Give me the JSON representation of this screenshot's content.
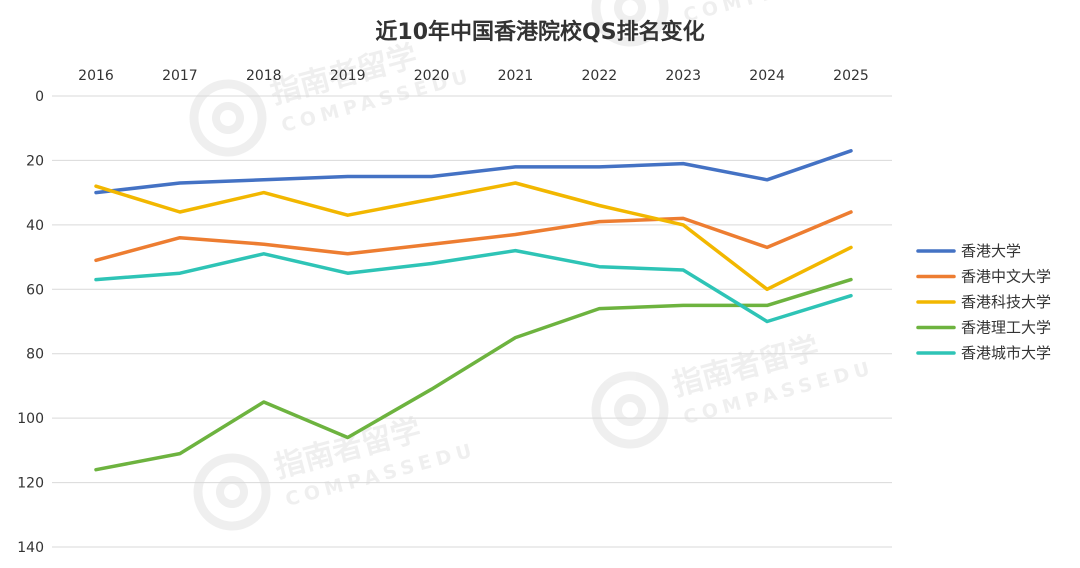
{
  "watermark": {
    "brand_cn": "指南者留学",
    "brand_en": "COMPASSEDU"
  },
  "chart_data": {
    "type": "line",
    "title": "近10年中国香港院校QS排名变化",
    "xlabel": "",
    "ylabel": "",
    "x": [
      "2016",
      "2017",
      "2018",
      "2019",
      "2020",
      "2021",
      "2022",
      "2023",
      "2024",
      "2025"
    ],
    "y_inverted": true,
    "ylim": [
      0,
      140
    ],
    "yticks": [
      0,
      20,
      40,
      60,
      80,
      100,
      120,
      140
    ],
    "x_axis_position": "top",
    "grid": true,
    "legend_position": "right",
    "series": [
      {
        "name": "香港大学",
        "color": "#4472C4",
        "values": [
          30,
          27,
          26,
          25,
          25,
          22,
          22,
          21,
          26,
          17
        ]
      },
      {
        "name": "香港中文大学",
        "color": "#ED7D31",
        "values": [
          51,
          44,
          46,
          49,
          46,
          43,
          39,
          38,
          47,
          36
        ]
      },
      {
        "name": "香港科技大学",
        "color": "#F2B700",
        "values": [
          28,
          36,
          30,
          37,
          32,
          27,
          34,
          40,
          60,
          47
        ]
      },
      {
        "name": "香港理工大学",
        "color": "#6DB33F",
        "values": [
          116,
          111,
          95,
          106,
          91,
          75,
          66,
          65,
          65,
          57
        ]
      },
      {
        "name": "香港城市大学",
        "color": "#2EC4B6",
        "values": [
          57,
          55,
          49,
          55,
          52,
          48,
          53,
          54,
          70,
          62
        ]
      }
    ]
  }
}
